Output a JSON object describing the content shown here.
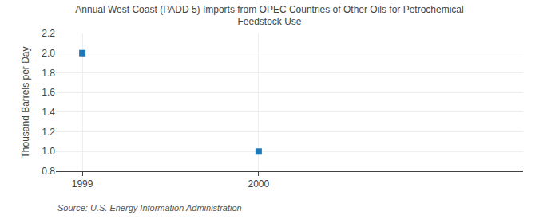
{
  "chart_data": {
    "type": "scatter",
    "title": "Annual West Coast (PADD 5) Imports from OPEC Countries of Other Oils for Petrochemical\nFeedstock Use",
    "y_label": "Thousand Barrels per Day",
    "annotations": [
      "Source: U.S. Energy Information Administration"
    ],
    "x": [
      1999,
      2000
    ],
    "values": [
      2.0,
      1.0
    ],
    "marker": "square",
    "xlim": [
      1998.85,
      2001.5
    ],
    "xticks": [
      1999,
      2000
    ],
    "ylim": [
      0.8,
      2.2
    ],
    "yticks": [
      0.8,
      {
        "value": 1.0,
        "label": "1.0"
      },
      1.2,
      1.4,
      1.6,
      1.8,
      {
        "value": 2.0,
        "label": "2.0"
      },
      2.2
    ],
    "grid": true
  }
}
